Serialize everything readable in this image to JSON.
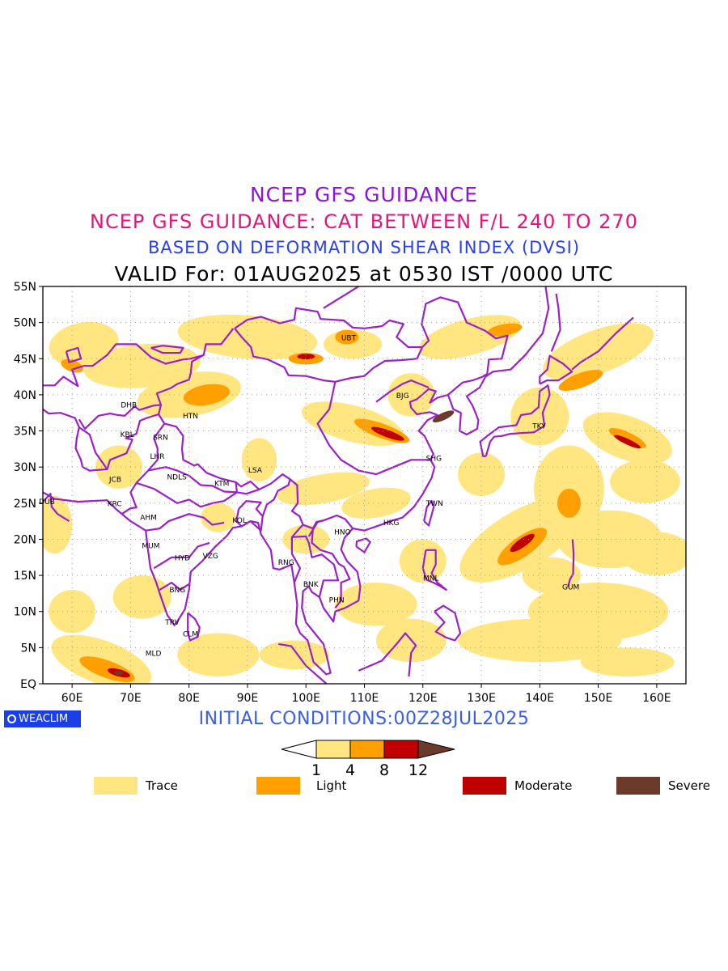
{
  "titles": {
    "line1": "NCEP GFS GUIDANCE",
    "line2": "NCEP GFS GUIDANCE: CAT BETWEEN F/L 240 TO 270",
    "line3": "BASED ON DEFORMATION SHEAR INDEX (DVSI)",
    "line4": "VALID For: 01AUG2025 at 0530 IST /0000 UTC"
  },
  "initial_conditions": "INITIAL CONDITIONS:00Z28JUL2025",
  "logo_text": "WEACLIM",
  "map": {
    "lon_range": [
      55,
      165
    ],
    "lat_range": [
      0,
      55
    ],
    "lat_ticks": [
      "EQ",
      "5N",
      "10N",
      "15N",
      "20N",
      "25N",
      "30N",
      "35N",
      "40N",
      "45N",
      "50N",
      "55N"
    ],
    "lon_ticks": [
      "60E",
      "70E",
      "80E",
      "90E",
      "100E",
      "110E",
      "120E",
      "130E",
      "140E",
      "150E",
      "160E"
    ],
    "grid": "dotted",
    "stations": [
      {
        "code": "UBT",
        "lon": 107,
        "lat": 47.9
      },
      {
        "code": "BJG",
        "lon": 116.4,
        "lat": 39.9
      },
      {
        "code": "DHB",
        "lon": 69.3,
        "lat": 38.6
      },
      {
        "code": "HTN",
        "lon": 79.9,
        "lat": 37.1
      },
      {
        "code": "KBL",
        "lon": 69.2,
        "lat": 34.5
      },
      {
        "code": "SRN",
        "lon": 74.8,
        "lat": 34.1
      },
      {
        "code": "LHR",
        "lon": 74.3,
        "lat": 31.5
      },
      {
        "code": "TKY",
        "lon": 139.7,
        "lat": 35.7
      },
      {
        "code": "SHG",
        "lon": 121.5,
        "lat": 31.2
      },
      {
        "code": "LSA",
        "lon": 91.1,
        "lat": 29.6
      },
      {
        "code": "JCB",
        "lon": 67.3,
        "lat": 28.3
      },
      {
        "code": "NDLS",
        "lon": 77.2,
        "lat": 28.6
      },
      {
        "code": "KTM",
        "lon": 85.3,
        "lat": 27.7
      },
      {
        "code": "DUB",
        "lon": 55.3,
        "lat": 25.2
      },
      {
        "code": "KRC",
        "lon": 67.0,
        "lat": 24.9
      },
      {
        "code": "TWN",
        "lon": 121.5,
        "lat": 25.0
      },
      {
        "code": "AHM",
        "lon": 72.6,
        "lat": 23.0
      },
      {
        "code": "KOL",
        "lon": 88.4,
        "lat": 22.6
      },
      {
        "code": "HKG",
        "lon": 114.2,
        "lat": 22.3
      },
      {
        "code": "HNO",
        "lon": 105.8,
        "lat": 21.0
      },
      {
        "code": "MUM",
        "lon": 72.9,
        "lat": 19.1
      },
      {
        "code": "HYD",
        "lon": 78.5,
        "lat": 17.4
      },
      {
        "code": "VZG",
        "lon": 83.3,
        "lat": 17.7
      },
      {
        "code": "RNG",
        "lon": 96.2,
        "lat": 16.8
      },
      {
        "code": "BNK",
        "lon": 100.5,
        "lat": 13.8
      },
      {
        "code": "MNL",
        "lon": 121.0,
        "lat": 14.6
      },
      {
        "code": "GUM",
        "lon": 144.8,
        "lat": 13.4
      },
      {
        "code": "PHN",
        "lon": 104.9,
        "lat": 11.6
      },
      {
        "code": "BNG",
        "lon": 77.6,
        "lat": 13.0
      },
      {
        "code": "TRV",
        "lon": 76.9,
        "lat": 8.5
      },
      {
        "code": "CLM",
        "lon": 79.9,
        "lat": 6.9
      },
      {
        "code": "MLD",
        "lon": 73.5,
        "lat": 4.2
      }
    ]
  },
  "colorbar": {
    "ticks": [
      "1",
      "4",
      "8",
      "12"
    ],
    "colors": [
      "#ffe680",
      "#ffa000",
      "#c00000",
      "#6b3a2a"
    ]
  },
  "legend": [
    {
      "label": "Trace",
      "color": "#ffe680"
    },
    {
      "label": "Light",
      "color": "#ffa000"
    },
    {
      "label": "Moderate",
      "color": "#c00000"
    },
    {
      "label": "Severe",
      "color": "#6b3a2a"
    }
  ],
  "colors": {
    "coast": "#9a20c8",
    "trace": "#ffe680",
    "light": "#ffa000",
    "moderate": "#c00000",
    "severe": "#6b3a2a"
  }
}
